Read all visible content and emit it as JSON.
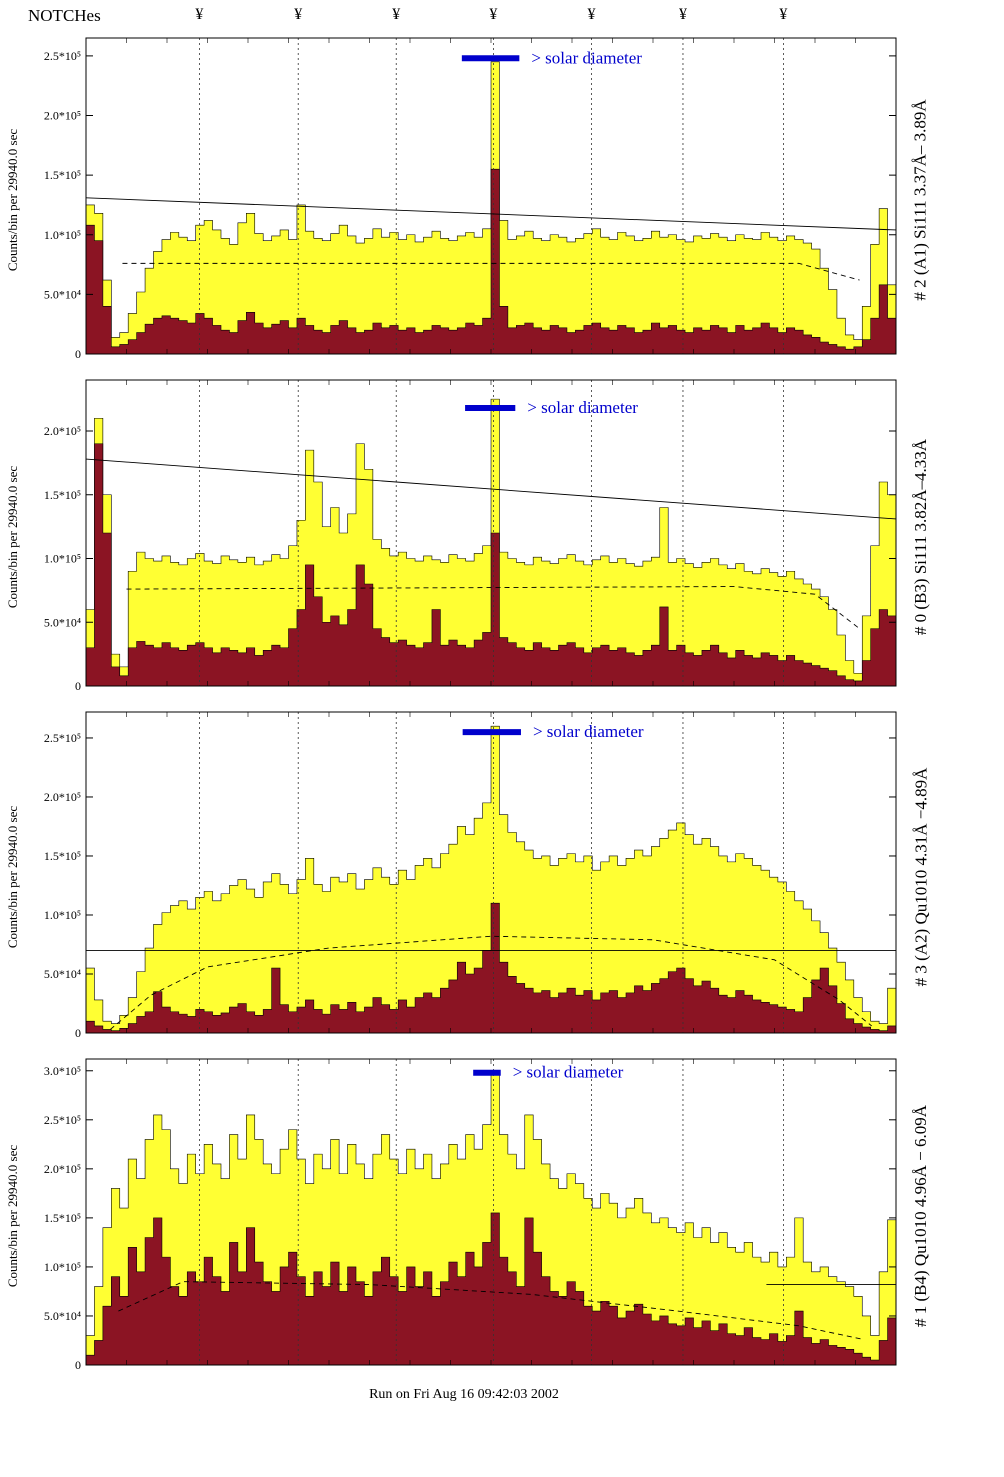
{
  "notches": {
    "label": "NOTCHes",
    "symbol": "¥",
    "positions": [
      0.14,
      0.262,
      0.383,
      0.503,
      0.624,
      0.737,
      0.861
    ]
  },
  "footer": {
    "run_text": "Run on Fri Aug 16 09:42:03 2002"
  },
  "colors": {
    "histogram_total": "#ffff33",
    "histogram_background": "#8b1423",
    "solar_bar": "#0000cc",
    "axis": "#000000"
  },
  "chart_data": [
    {
      "type": "bar",
      "title": "",
      "right_label": "# 2 (A1) Si111  3.37Å– 3.89Å",
      "ylabel": "Counts/bin per  29940.0 sec",
      "xlabel": "",
      "x_range": [
        0,
        1
      ],
      "ylim_k": [
        0,
        265
      ],
      "y_scale": 1000,
      "grid": "dashed vertical notch lines only",
      "yticks": [
        {
          "v_k": 0,
          "label": "0"
        },
        {
          "v_k": 50,
          "label": "5.0*10⁴"
        },
        {
          "v_k": 100,
          "label": "1.0*10⁵"
        },
        {
          "v_k": 150,
          "label": "1.5*10⁵"
        },
        {
          "v_k": 200,
          "label": "2.0*10⁵"
        },
        {
          "v_k": 250,
          "label": "2.5*10⁵"
        }
      ],
      "notches_x": [
        0.14,
        0.262,
        0.383,
        0.503,
        0.624,
        0.737,
        0.861
      ],
      "trend_line": [
        [
          0,
          131
        ],
        [
          1,
          104
        ]
      ],
      "dashed_line": [
        [
          0.045,
          76
        ],
        [
          0.88,
          76
        ],
        [
          0.955,
          62
        ]
      ],
      "solar_bar": {
        "x0": 0.464,
        "x1": 0.535,
        "y_k": 248,
        "label": "> solar diameter"
      },
      "series": [
        {
          "name": "total",
          "color": "#ffff33",
          "values_k": [
            125,
            118,
            62,
            14,
            18,
            34,
            52,
            72,
            86,
            96,
            102,
            98,
            95,
            108,
            112,
            104,
            97,
            92,
            110,
            118,
            101,
            95,
            99,
            104,
            96,
            125,
            103,
            97,
            95,
            101,
            108,
            99,
            93,
            97,
            105,
            98,
            102,
            96,
            100,
            94,
            98,
            103,
            97,
            95,
            99,
            102,
            98,
            105,
            245,
            112,
            96,
            99,
            103,
            97,
            95,
            100,
            98,
            94,
            97,
            101,
            105,
            98,
            96,
            102,
            99,
            95,
            97,
            103,
            98,
            100,
            96,
            94,
            99,
            97,
            101,
            98,
            95,
            100,
            97,
            96,
            102,
            98,
            95,
            99,
            96,
            93,
            88,
            72,
            54,
            30,
            16,
            12,
            40,
            92,
            122,
            58
          ]
        },
        {
          "name": "background",
          "color": "#8b1423",
          "values_k": [
            108,
            95,
            40,
            6,
            8,
            12,
            18,
            25,
            30,
            32,
            30,
            28,
            26,
            34,
            30,
            24,
            20,
            18,
            28,
            35,
            26,
            22,
            25,
            28,
            22,
            30,
            24,
            20,
            18,
            24,
            28,
            22,
            18,
            20,
            26,
            22,
            24,
            20,
            22,
            18,
            20,
            24,
            22,
            20,
            22,
            26,
            24,
            30,
            155,
            40,
            22,
            24,
            26,
            22,
            20,
            24,
            22,
            18,
            20,
            24,
            26,
            22,
            20,
            24,
            22,
            18,
            20,
            26,
            22,
            24,
            20,
            18,
            22,
            20,
            24,
            22,
            18,
            24,
            20,
            22,
            26,
            22,
            18,
            22,
            20,
            16,
            14,
            10,
            8,
            6,
            4,
            6,
            12,
            30,
            58,
            30
          ]
        }
      ]
    },
    {
      "type": "bar",
      "title": "",
      "right_label": "# 0 (B3) Si111  3.82Å–4.33Å",
      "ylabel": "Counts/bin per  29940.0 sec",
      "xlabel": "",
      "x_range": [
        0,
        1
      ],
      "ylim_k": [
        0,
        240
      ],
      "y_scale": 1000,
      "grid": "dashed vertical notch lines only",
      "yticks": [
        {
          "v_k": 0,
          "label": "0"
        },
        {
          "v_k": 50,
          "label": "5.0*10⁴"
        },
        {
          "v_k": 100,
          "label": "1.0*10⁵"
        },
        {
          "v_k": 150,
          "label": "1.5*10⁵"
        },
        {
          "v_k": 200,
          "label": "2.0*10⁵"
        }
      ],
      "notches_x": [
        0.14,
        0.262,
        0.383,
        0.503,
        0.624,
        0.737,
        0.861
      ],
      "trend_line": [
        [
          0,
          178
        ],
        [
          1,
          131
        ]
      ],
      "dashed_line": [
        [
          0.05,
          76
        ],
        [
          0.8,
          78
        ],
        [
          0.9,
          72
        ],
        [
          0.955,
          45
        ]
      ],
      "solar_bar": {
        "x0": 0.468,
        "x1": 0.53,
        "y_k": 218,
        "label": "> solar diameter"
      },
      "series": [
        {
          "name": "total",
          "color": "#ffff33",
          "values_k": [
            60,
            210,
            150,
            25,
            15,
            90,
            105,
            100,
            98,
            102,
            97,
            95,
            100,
            104,
            98,
            96,
            102,
            99,
            97,
            101,
            95,
            98,
            103,
            100,
            110,
            130,
            185,
            160,
            125,
            140,
            120,
            135,
            190,
            170,
            115,
            108,
            102,
            105,
            100,
            98,
            102,
            99,
            97,
            103,
            100,
            98,
            104,
            110,
            225,
            105,
            100,
            97,
            95,
            101,
            98,
            96,
            100,
            103,
            98,
            95,
            99,
            102,
            97,
            100,
            96,
            94,
            98,
            101,
            140,
            97,
            100,
            96,
            93,
            97,
            100,
            95,
            92,
            96,
            90,
            88,
            92,
            89,
            86,
            90,
            84,
            80,
            76,
            70,
            60,
            40,
            20,
            10,
            55,
            110,
            160,
            150
          ]
        },
        {
          "name": "background",
          "color": "#8b1423",
          "values_k": [
            30,
            190,
            120,
            15,
            8,
            30,
            35,
            32,
            30,
            34,
            30,
            28,
            32,
            34,
            30,
            26,
            30,
            28,
            26,
            30,
            24,
            28,
            32,
            30,
            45,
            60,
            95,
            70,
            50,
            55,
            48,
            60,
            95,
            80,
            45,
            38,
            34,
            36,
            32,
            30,
            34,
            60,
            32,
            36,
            32,
            30,
            36,
            42,
            120,
            38,
            34,
            30,
            28,
            34,
            30,
            28,
            32,
            34,
            30,
            26,
            30,
            32,
            28,
            30,
            26,
            24,
            28,
            32,
            62,
            28,
            32,
            26,
            24,
            28,
            32,
            26,
            22,
            28,
            24,
            22,
            26,
            24,
            20,
            24,
            20,
            18,
            16,
            14,
            12,
            8,
            5,
            4,
            20,
            45,
            60,
            55
          ]
        }
      ]
    },
    {
      "type": "bar",
      "title": "",
      "right_label": "# 3 (A2) Qu1010  4.31Å −4.89Å",
      "ylabel": "Counts/bin per  29940.0 sec",
      "xlabel": "",
      "x_range": [
        0,
        1
      ],
      "ylim_k": [
        0,
        272
      ],
      "y_scale": 1000,
      "grid": "dashed vertical notch lines only",
      "yticks": [
        {
          "v_k": 0,
          "label": "0"
        },
        {
          "v_k": 50,
          "label": "5.0*10⁴"
        },
        {
          "v_k": 100,
          "label": "1.0*10⁵"
        },
        {
          "v_k": 150,
          "label": "1.5*10⁵"
        },
        {
          "v_k": 200,
          "label": "2.0*10⁵"
        },
        {
          "v_k": 250,
          "label": "2.5*10⁵"
        }
      ],
      "notches_x": [
        0.14,
        0.262,
        0.383,
        0.503,
        0.624,
        0.737,
        0.861
      ],
      "trend_line": [
        [
          0,
          70
        ],
        [
          1,
          70
        ]
      ],
      "dashed_line": [
        [
          0.03,
          3
        ],
        [
          0.08,
          32
        ],
        [
          0.15,
          56
        ],
        [
          0.3,
          72
        ],
        [
          0.5,
          82
        ],
        [
          0.7,
          79
        ],
        [
          0.85,
          62
        ],
        [
          0.93,
          28
        ],
        [
          0.97,
          6
        ]
      ],
      "solar_bar": {
        "x0": 0.465,
        "x1": 0.537,
        "y_k": 255,
        "label": "> solar diameter"
      },
      "series": [
        {
          "name": "total",
          "color": "#ffff33",
          "values_k": [
            55,
            28,
            10,
            8,
            15,
            30,
            52,
            72,
            92,
            102,
            108,
            112,
            105,
            115,
            120,
            112,
            118,
            125,
            130,
            122,
            115,
            128,
            135,
            126,
            118,
            130,
            148,
            126,
            120,
            132,
            128,
            135,
            122,
            130,
            140,
            132,
            126,
            138,
            130,
            142,
            148,
            140,
            152,
            160,
            175,
            168,
            182,
            195,
            260,
            185,
            170,
            162,
            155,
            148,
            150,
            142,
            148,
            152,
            145,
            150,
            138,
            145,
            150,
            142,
            148,
            155,
            150,
            158,
            165,
            172,
            178,
            168,
            160,
            165,
            158,
            150,
            145,
            152,
            148,
            142,
            138,
            132,
            128,
            120,
            112,
            105,
            95,
            85,
            72,
            60,
            45,
            30,
            18,
            10,
            8,
            38
          ]
        },
        {
          "name": "background",
          "color": "#8b1423",
          "values_k": [
            10,
            6,
            3,
            2,
            4,
            8,
            14,
            18,
            35,
            22,
            18,
            16,
            14,
            20,
            18,
            15,
            17,
            22,
            25,
            18,
            15,
            20,
            55,
            24,
            18,
            22,
            28,
            20,
            16,
            24,
            20,
            26,
            18,
            22,
            30,
            24,
            20,
            28,
            22,
            30,
            34,
            30,
            38,
            45,
            60,
            50,
            55,
            70,
            110,
            60,
            48,
            42,
            38,
            34,
            36,
            30,
            34,
            38,
            32,
            36,
            28,
            34,
            36,
            30,
            34,
            40,
            36,
            42,
            46,
            52,
            55,
            46,
            40,
            44,
            38,
            32,
            30,
            36,
            32,
            28,
            26,
            24,
            22,
            20,
            18,
            30,
            45,
            55,
            40,
            25,
            12,
            8,
            5,
            3,
            2,
            6
          ]
        }
      ]
    },
    {
      "type": "bar",
      "title": "",
      "right_label": "# 1 (B4) Qu1010 4.96Å − 6.09Å",
      "ylabel": "Counts/bin per  29940.0 sec",
      "xlabel": "",
      "x_range": [
        0,
        1
      ],
      "ylim_k": [
        0,
        312
      ],
      "y_scale": 1000,
      "grid": "dashed vertical notch lines only",
      "yticks": [
        {
          "v_k": 0,
          "label": "0"
        },
        {
          "v_k": 50,
          "label": "5.0*10⁴"
        },
        {
          "v_k": 100,
          "label": "1.0*10⁵"
        },
        {
          "v_k": 150,
          "label": "1.5*10⁵"
        },
        {
          "v_k": 200,
          "label": "2.0*10⁵"
        },
        {
          "v_k": 250,
          "label": "2.5*10⁵"
        },
        {
          "v_k": 300,
          "label": "3.0*10⁵"
        }
      ],
      "notches_x": [
        0.14,
        0.262,
        0.383,
        0.503,
        0.624,
        0.737,
        0.861
      ],
      "trend_line": [
        [
          0.84,
          82
        ],
        [
          1,
          82
        ]
      ],
      "dashed_line": [
        [
          0.04,
          55
        ],
        [
          0.12,
          85
        ],
        [
          0.35,
          82
        ],
        [
          0.55,
          72
        ],
        [
          0.72,
          56
        ],
        [
          0.88,
          40
        ],
        [
          0.96,
          26
        ]
      ],
      "solar_bar": {
        "x0": 0.478,
        "x1": 0.512,
        "y_k": 298,
        "label": "> solar diameter"
      },
      "series": [
        {
          "name": "total",
          "color": "#ffff33",
          "values_k": [
            30,
            80,
            140,
            180,
            160,
            210,
            190,
            230,
            255,
            240,
            200,
            185,
            215,
            195,
            225,
            205,
            190,
            235,
            210,
            255,
            230,
            205,
            195,
            220,
            240,
            210,
            185,
            215,
            200,
            230,
            195,
            225,
            205,
            190,
            215,
            235,
            210,
            195,
            220,
            200,
            215,
            190,
            205,
            225,
            210,
            235,
            220,
            245,
            300,
            235,
            215,
            200,
            255,
            230,
            205,
            190,
            180,
            195,
            185,
            170,
            160,
            175,
            165,
            150,
            160,
            170,
            155,
            145,
            150,
            140,
            135,
            145,
            130,
            140,
            125,
            135,
            120,
            115,
            125,
            110,
            105,
            115,
            100,
            110,
            150,
            105,
            95,
            100,
            90,
            85,
            80,
            70,
            50,
            30,
            95,
            148
          ]
        },
        {
          "name": "background",
          "color": "#8b1423",
          "values_k": [
            10,
            25,
            60,
            90,
            70,
            120,
            95,
            130,
            150,
            110,
            80,
            70,
            95,
            85,
            110,
            90,
            75,
            125,
            95,
            140,
            105,
            85,
            75,
            100,
            115,
            90,
            70,
            95,
            80,
            105,
            75,
            100,
            85,
            70,
            95,
            110,
            90,
            75,
            100,
            80,
            95,
            70,
            85,
            105,
            90,
            115,
            100,
            125,
            155,
            110,
            95,
            80,
            150,
            115,
            90,
            75,
            70,
            85,
            75,
            60,
            55,
            65,
            60,
            48,
            55,
            62,
            52,
            45,
            50,
            42,
            40,
            48,
            38,
            45,
            35,
            42,
            32,
            30,
            38,
            28,
            26,
            32,
            24,
            30,
            55,
            28,
            22,
            26,
            20,
            18,
            16,
            12,
            8,
            5,
            25,
            48
          ]
        }
      ]
    }
  ]
}
